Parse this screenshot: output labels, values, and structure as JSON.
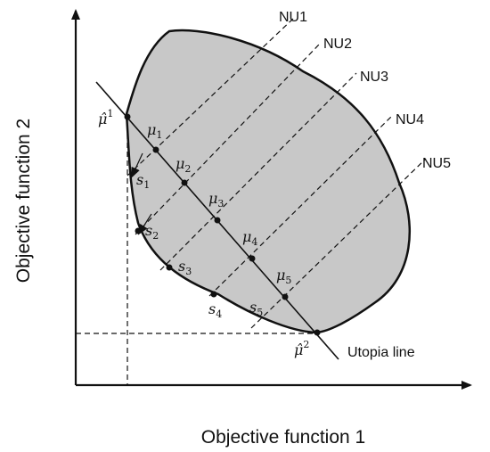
{
  "axes": {
    "x_title": "Objective function 1",
    "y_title": "Objective function 2"
  },
  "normal_lines": {
    "labels": [
      "NU1",
      "NU2",
      "NU3",
      "NU4",
      "NU5"
    ]
  },
  "utopia_line": {
    "label": "Utopia line"
  },
  "anchor_points": {
    "first": {
      "symbol": "μ̂",
      "sup": "1"
    },
    "second": {
      "symbol": "μ̂",
      "sup": "2"
    }
  },
  "mu_points": [
    {
      "symbol": "μ",
      "sub": "1"
    },
    {
      "symbol": "μ",
      "sub": "2"
    },
    {
      "symbol": "μ",
      "sub": "3"
    },
    {
      "symbol": "μ",
      "sub": "4"
    },
    {
      "symbol": "μ",
      "sub": "5"
    }
  ],
  "s_points": [
    {
      "symbol": "s",
      "sub": "1"
    },
    {
      "symbol": "s",
      "sub": "2"
    },
    {
      "symbol": "s",
      "sub": "3"
    },
    {
      "symbol": "s",
      "sub": "4"
    },
    {
      "symbol": "s",
      "sub": "5"
    }
  ],
  "colors": {
    "region_fill": "#c8c8c8",
    "stroke": "#111111"
  }
}
